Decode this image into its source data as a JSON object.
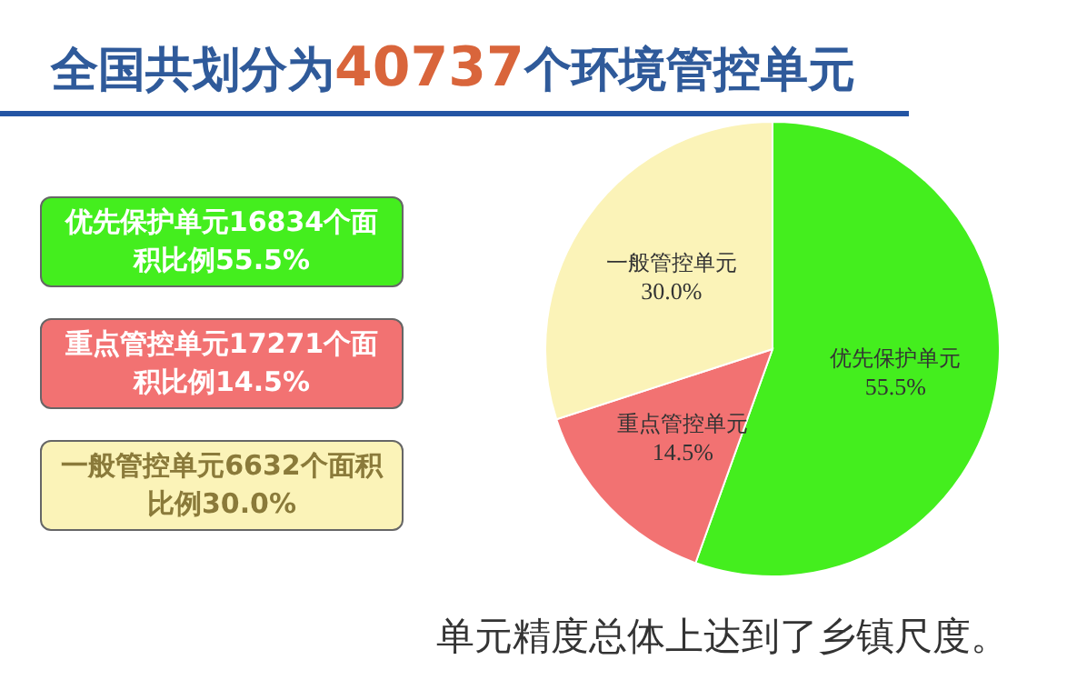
{
  "chart_data": {
    "type": "pie",
    "title": "全国共划分为40737个环境管控单元",
    "categories": [
      "优先保护单元",
      "重点管控单元",
      "一般管控单元"
    ],
    "values": [
      55.5,
      14.5,
      30.0
    ],
    "value_labels": [
      "55.5%",
      "14.5%",
      "30.0%"
    ],
    "colors": [
      "#44ee1e",
      "#f27272",
      "#fbf3b8"
    ],
    "legend": false,
    "annotations": [
      "优先保护单元16834个面积比例55.5%",
      "重点管控单元17271个面积比例14.5%",
      "一般管控单元6632个面积比例30.0%",
      "单元精度总体上达到了乡镇尺度。"
    ]
  }
}
